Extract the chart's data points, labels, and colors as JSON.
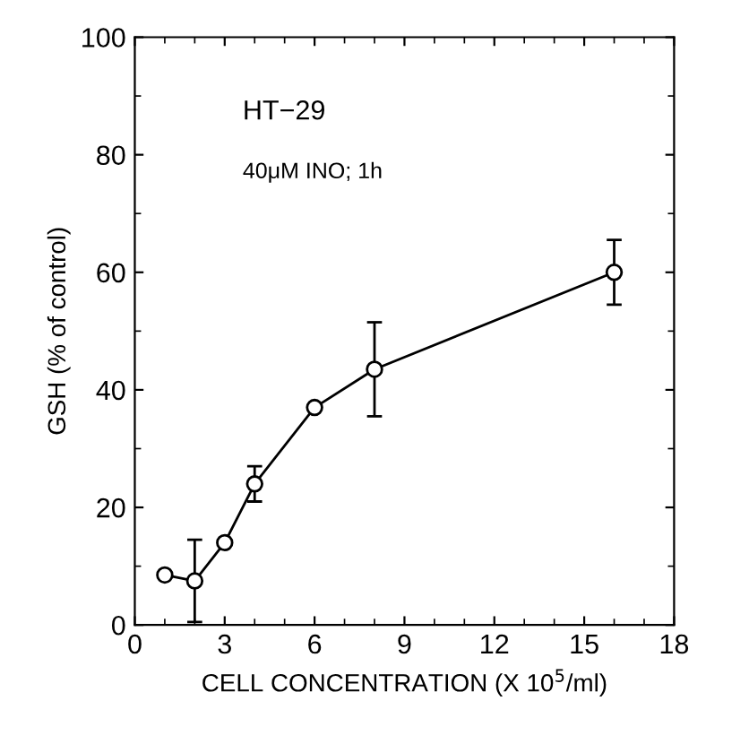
{
  "chart_data": {
    "type": "line",
    "xlabel": "CELL CONCENTRATION (X 10$^{5}$/ml)",
    "ylabel": "GSH (% of control)",
    "annotations": [
      "HT−29",
      "40μM INO; 1h"
    ],
    "x": [
      1,
      2,
      3,
      4,
      6,
      8,
      16
    ],
    "series": [
      {
        "color": "#000000",
        "values": [
          8.5,
          7.5,
          14,
          24,
          37,
          43.5,
          60
        ],
        "errors": [
          null,
          7,
          null,
          3,
          null,
          8,
          5.5
        ]
      }
    ],
    "xlim": [
      0,
      18
    ],
    "xticks": [
      0,
      3,
      6,
      9,
      12,
      15,
      18
    ],
    "ylim": [
      0,
      100
    ],
    "yticks": [
      0,
      20,
      40,
      60,
      80,
      100
    ],
    "marker": "circle",
    "line_style": "solid",
    "grid": false,
    "legend": false
  }
}
